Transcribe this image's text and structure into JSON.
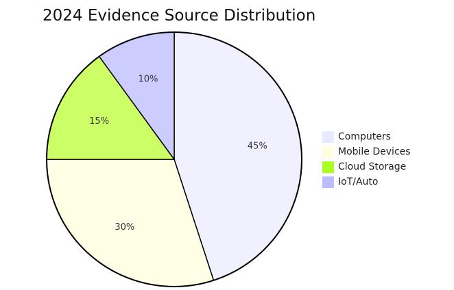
{
  "chart_data": {
    "type": "pie",
    "title": "2024 Evidence Source Distribution",
    "categories": [
      "Computers",
      "Mobile Devices",
      "Cloud Storage",
      "IoT/Auto"
    ],
    "values": [
      45,
      30,
      15,
      10
    ],
    "value_labels": [
      "45%",
      "30%",
      "15%",
      "10%"
    ],
    "colors": [
      "#f0f0ff",
      "#ffffe6",
      "#ccff66",
      "#ccccff"
    ],
    "legend_colors": [
      "#e8e8ff",
      "#ffffe0",
      "#aaff22",
      "#bbbbff"
    ],
    "legend": "right",
    "start_angle": "top",
    "direction": "clockwise"
  }
}
